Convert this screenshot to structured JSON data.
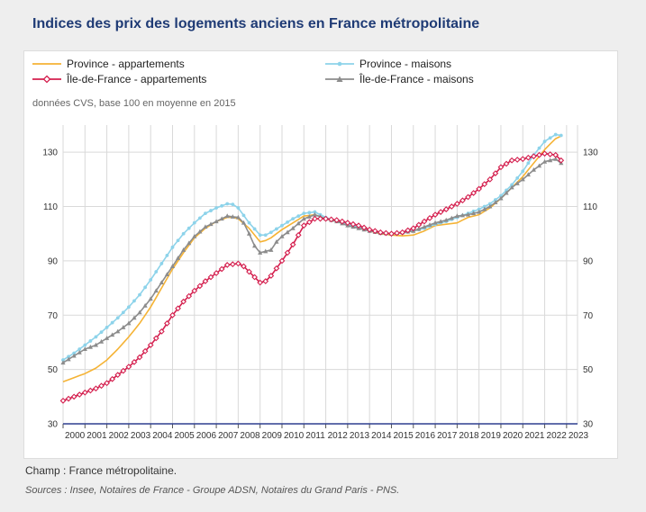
{
  "title": "Indices des prix des logements anciens en France métropolitaine",
  "subtitle": "données CVS, base 100 en moyenne en 2015",
  "footer": {
    "scope": "Champ : France métropolitaine.",
    "sources": "Sources : Insee, Notaires de France - Groupe ADSN, Notaires du Grand Paris - PNS."
  },
  "colors": {
    "province_appartements": "#f5b335",
    "province_maisons": "#8dd3ea",
    "idf_appartements": "#d41f4e",
    "idf_maisons": "#8c8c8c",
    "axis": "#2e3f8f",
    "grid": "#d9d9d9"
  },
  "chart_data": {
    "type": "line",
    "title": "Indices des prix des logements anciens en France métropolitaine",
    "subtitle": "données CVS, base 100 en moyenne en 2015",
    "x_ticks": [
      "2000",
      "2001",
      "2002",
      "2003",
      "2004",
      "2005",
      "2006",
      "2007",
      "2008",
      "2009",
      "2010",
      "2011",
      "2012",
      "2013",
      "2014",
      "2015",
      "2016",
      "2017",
      "2018",
      "2019",
      "2020",
      "2021",
      "2022",
      "2023"
    ],
    "y_ticks": [
      30,
      50,
      70,
      90,
      110,
      130
    ],
    "xlim": [
      2000,
      2023.5
    ],
    "ylim": [
      30,
      140
    ],
    "grid": true,
    "legend_position": "top",
    "series": [
      {
        "name": "Province - appartements",
        "marker": "none",
        "points": [
          [
            2000,
            45.5
          ],
          [
            2000.5,
            47
          ],
          [
            2001,
            48.5
          ],
          [
            2001.5,
            50.5
          ],
          [
            2002,
            53.5
          ],
          [
            2002.5,
            57.5
          ],
          [
            2003,
            62
          ],
          [
            2003.5,
            67
          ],
          [
            2004,
            73
          ],
          [
            2004.5,
            80
          ],
          [
            2005,
            87
          ],
          [
            2005.5,
            93
          ],
          [
            2006,
            98.5
          ],
          [
            2006.5,
            102
          ],
          [
            2007,
            104.5
          ],
          [
            2007.5,
            106
          ],
          [
            2007.75,
            106
          ],
          [
            2008,
            105.5
          ],
          [
            2008.5,
            102
          ],
          [
            2009,
            97
          ],
          [
            2009.25,
            97.5
          ],
          [
            2009.5,
            98.5
          ],
          [
            2010,
            101.5
          ],
          [
            2010.5,
            104
          ],
          [
            2011,
            106.5
          ],
          [
            2011.5,
            107
          ],
          [
            2012,
            105.5
          ],
          [
            2012.5,
            104.5
          ],
          [
            2013,
            103.5
          ],
          [
            2013.5,
            102.5
          ],
          [
            2014,
            101
          ],
          [
            2014.5,
            100
          ],
          [
            2015,
            99.5
          ],
          [
            2015.5,
            99.2
          ],
          [
            2016,
            99.5
          ],
          [
            2016.5,
            101
          ],
          [
            2017,
            103
          ],
          [
            2017.5,
            103.5
          ],
          [
            2018,
            104
          ],
          [
            2018.5,
            106
          ],
          [
            2019,
            107
          ],
          [
            2019.5,
            109.5
          ],
          [
            2020,
            113
          ],
          [
            2020.5,
            117
          ],
          [
            2021,
            121
          ],
          [
            2021.5,
            126
          ],
          [
            2022,
            131
          ],
          [
            2022.5,
            135
          ],
          [
            2022.75,
            136
          ]
        ]
      },
      {
        "name": "Province - maisons",
        "marker": "dot",
        "points": [
          [
            2000,
            53.5
          ],
          [
            2000.5,
            56
          ],
          [
            2001,
            59
          ],
          [
            2001.5,
            62
          ],
          [
            2002,
            65.5
          ],
          [
            2002.5,
            69
          ],
          [
            2003,
            73
          ],
          [
            2003.5,
            77.5
          ],
          [
            2004,
            83
          ],
          [
            2004.5,
            89
          ],
          [
            2005,
            95
          ],
          [
            2005.5,
            100
          ],
          [
            2006,
            104
          ],
          [
            2006.5,
            107.5
          ],
          [
            2007,
            109.5
          ],
          [
            2007.5,
            111
          ],
          [
            2007.75,
            110.8
          ],
          [
            2008,
            109.5
          ],
          [
            2008.5,
            104
          ],
          [
            2009,
            99.5
          ],
          [
            2009.25,
            99.5
          ],
          [
            2009.5,
            100.5
          ],
          [
            2010,
            103
          ],
          [
            2010.5,
            105.5
          ],
          [
            2011,
            107.5
          ],
          [
            2011.5,
            108
          ],
          [
            2012,
            106
          ],
          [
            2012.5,
            104.5
          ],
          [
            2013,
            103.5
          ],
          [
            2013.5,
            102.5
          ],
          [
            2014,
            101
          ],
          [
            2014.5,
            100.5
          ],
          [
            2015,
            100
          ],
          [
            2015.5,
            100.2
          ],
          [
            2016,
            101
          ],
          [
            2016.5,
            102
          ],
          [
            2017,
            103.5
          ],
          [
            2017.5,
            104.5
          ],
          [
            2018,
            106
          ],
          [
            2018.5,
            107.5
          ],
          [
            2019,
            109
          ],
          [
            2019.5,
            111
          ],
          [
            2020,
            114
          ],
          [
            2020.5,
            118
          ],
          [
            2021,
            123
          ],
          [
            2021.5,
            129
          ],
          [
            2022,
            134
          ],
          [
            2022.5,
            136.5
          ],
          [
            2022.75,
            136.2
          ]
        ]
      },
      {
        "name": "Île-de-France - appartements",
        "marker": "diamond",
        "points": [
          [
            2000,
            38.5
          ],
          [
            2000.5,
            40
          ],
          [
            2001,
            41.5
          ],
          [
            2001.5,
            43
          ],
          [
            2002,
            45
          ],
          [
            2002.5,
            48
          ],
          [
            2003,
            51
          ],
          [
            2003.5,
            54.5
          ],
          [
            2004,
            59
          ],
          [
            2004.5,
            64
          ],
          [
            2005,
            70
          ],
          [
            2005.5,
            75
          ],
          [
            2006,
            79
          ],
          [
            2006.5,
            82.5
          ],
          [
            2007,
            85.5
          ],
          [
            2007.5,
            88.5
          ],
          [
            2008,
            89
          ],
          [
            2008.25,
            88
          ],
          [
            2008.5,
            86
          ],
          [
            2008.75,
            84
          ],
          [
            2009,
            82
          ],
          [
            2009.25,
            82.5
          ],
          [
            2009.5,
            84.5
          ],
          [
            2010,
            90
          ],
          [
            2010.5,
            96
          ],
          [
            2011,
            103
          ],
          [
            2011.5,
            105.5
          ],
          [
            2012,
            105.5
          ],
          [
            2012.5,
            105
          ],
          [
            2013,
            104
          ],
          [
            2013.5,
            103
          ],
          [
            2014,
            101.5
          ],
          [
            2014.5,
            100.5
          ],
          [
            2015,
            100
          ],
          [
            2015.5,
            100.5
          ],
          [
            2016,
            102
          ],
          [
            2016.5,
            104.5
          ],
          [
            2017,
            107
          ],
          [
            2017.5,
            109
          ],
          [
            2018,
            111
          ],
          [
            2018.5,
            113.5
          ],
          [
            2019,
            116.5
          ],
          [
            2019.5,
            120
          ],
          [
            2020,
            124.5
          ],
          [
            2020.5,
            127
          ],
          [
            2021,
            127.5
          ],
          [
            2021.5,
            128.5
          ],
          [
            2022,
            129.5
          ],
          [
            2022.5,
            129
          ],
          [
            2022.75,
            127
          ]
        ]
      },
      {
        "name": "Île-de-France - maisons",
        "marker": "triangle",
        "points": [
          [
            2000,
            52.5
          ],
          [
            2000.5,
            55
          ],
          [
            2001,
            57.5
          ],
          [
            2001.5,
            59
          ],
          [
            2002,
            61.5
          ],
          [
            2002.5,
            64
          ],
          [
            2003,
            67
          ],
          [
            2003.5,
            71
          ],
          [
            2004,
            76
          ],
          [
            2004.5,
            82
          ],
          [
            2005,
            88
          ],
          [
            2005.5,
            94
          ],
          [
            2006,
            99
          ],
          [
            2006.5,
            102.5
          ],
          [
            2007,
            104.5
          ],
          [
            2007.5,
            106.5
          ],
          [
            2008,
            106
          ],
          [
            2008.25,
            104
          ],
          [
            2008.5,
            100
          ],
          [
            2008.75,
            95.5
          ],
          [
            2009,
            93
          ],
          [
            2009.5,
            94
          ],
          [
            2009.75,
            97
          ],
          [
            2010,
            99
          ],
          [
            2010.5,
            102
          ],
          [
            2011,
            105.5
          ],
          [
            2011.5,
            107
          ],
          [
            2012,
            105.5
          ],
          [
            2012.5,
            104.5
          ],
          [
            2013,
            103
          ],
          [
            2013.5,
            102
          ],
          [
            2014,
            101
          ],
          [
            2014.5,
            100.2
          ],
          [
            2015,
            100
          ],
          [
            2015.5,
            100.5
          ],
          [
            2016,
            101
          ],
          [
            2016.5,
            102.5
          ],
          [
            2017,
            104
          ],
          [
            2017.5,
            105
          ],
          [
            2018,
            106.5
          ],
          [
            2018.5,
            107
          ],
          [
            2019,
            108
          ],
          [
            2019.5,
            110
          ],
          [
            2020,
            113
          ],
          [
            2020.5,
            117
          ],
          [
            2021,
            120
          ],
          [
            2021.5,
            123.5
          ],
          [
            2022,
            126.5
          ],
          [
            2022.5,
            127.5
          ],
          [
            2022.75,
            126
          ]
        ]
      }
    ]
  }
}
